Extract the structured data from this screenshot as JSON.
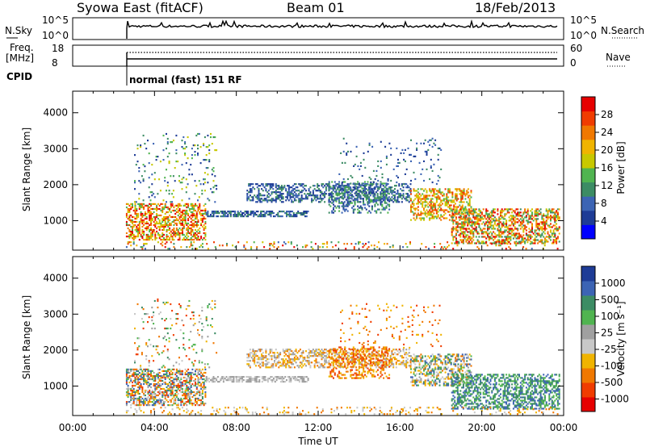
{
  "header": {
    "station": "Syowa East (fitACF)",
    "beam": "Beam 01",
    "date": "18/Feb/2013"
  },
  "panel_labels": {
    "nsky": "N.Sky",
    "nsky_ticks": [
      "10^5",
      "10^0"
    ],
    "nsearch": "N.Search",
    "nsearch_ticks": [
      "10^5",
      "10^0"
    ],
    "freq": "Freq.",
    "freq_unit": "[MHz]",
    "freq_ticks": [
      "18",
      "8"
    ],
    "nave": "Nave",
    "nave_ticks": [
      "60",
      "0"
    ],
    "cpid": "CPID",
    "cpid_text": "normal (fast) 151 RF"
  },
  "colors": {
    "power": [
      "#0000ff",
      "#1e3c96",
      "#3c64b4",
      "#3c8c64",
      "#50b450",
      "#c8c800",
      "#f0b400",
      "#f07800",
      "#f03c00",
      "#e60000"
    ],
    "velocity": [
      "#1e3c96",
      "#3c64b4",
      "#3c8c64",
      "#50b450",
      "#a0a0a0",
      "#c8c8c8",
      "#f0b400",
      "#f07800",
      "#f03c00",
      "#e60000"
    ]
  },
  "chart_data": [
    {
      "type": "heatmap",
      "panel": "power",
      "ylabel": "Slant Range [km]",
      "ylim": [
        180,
        4600
      ],
      "yticks": [
        "1000",
        "2000",
        "3000",
        "4000"
      ],
      "colorbar_label": "Power [dB]",
      "colorbar_ticks": [
        "4",
        "8",
        "12",
        "16",
        "20",
        "24",
        "28"
      ]
    },
    {
      "type": "heatmap",
      "panel": "velocity",
      "ylabel": "Slant Range [km]",
      "ylim": [
        180,
        4600
      ],
      "yticks": [
        "1000",
        "2000",
        "3000",
        "4000"
      ],
      "colorbar_label": "Velocity [m s⁻¹]",
      "colorbar_ticks": [
        "1000",
        "500",
        "100",
        "25",
        "-25",
        "-100",
        "-500",
        "-1000"
      ]
    }
  ],
  "time_axis": {
    "xlabel": "Time UT",
    "xlim_hours": [
      0,
      24
    ],
    "ticks": [
      "00:00",
      "04:00",
      "08:00",
      "12:00",
      "16:00",
      "20:00",
      "00:00"
    ]
  }
}
